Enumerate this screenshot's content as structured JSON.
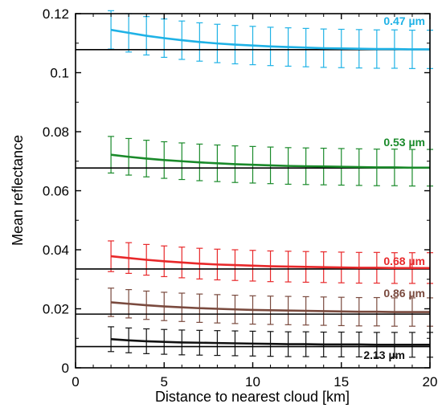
{
  "chart_data": {
    "type": "line",
    "xlabel": "Distance to nearest cloud [km]",
    "ylabel": "Mean reflectance",
    "xlim": [
      0,
      20
    ],
    "ylim": [
      0,
      0.12
    ],
    "x_ticks": [
      0,
      5,
      10,
      15,
      20
    ],
    "x_tick_labels": [
      "0",
      "5",
      "10",
      "15",
      "20"
    ],
    "y_ticks": [
      0,
      0.02,
      0.04,
      0.06,
      0.08,
      0.1,
      0.12
    ],
    "y_tick_labels": [
      "0",
      "0.02",
      "0.04",
      "0.06",
      "0.08",
      "0.1",
      "0.12"
    ],
    "grid": false,
    "legend": "none",
    "x": [
      2,
      3,
      4,
      5,
      6,
      7,
      8,
      9,
      10,
      11,
      12,
      13,
      14,
      15,
      16,
      17,
      18,
      19,
      20
    ],
    "series": [
      {
        "name": "0.47 µm",
        "color": "#1fb2e6",
        "values": [
          0.1145,
          0.1135,
          0.1125,
          0.1117,
          0.111,
          0.1104,
          0.1099,
          0.1095,
          0.1092,
          0.1089,
          0.1087,
          0.1085,
          0.1083,
          0.1082,
          0.1081,
          0.108,
          0.108,
          0.1079,
          0.1079
        ],
        "error": 0.0065,
        "baseline": 0.1078
      },
      {
        "name": "0.53 µm",
        "color": "#1a8a2a",
        "values": [
          0.0722,
          0.0715,
          0.0709,
          0.0704,
          0.07,
          0.0696,
          0.0693,
          0.069,
          0.0688,
          0.0686,
          0.0684,
          0.0683,
          0.0682,
          0.0681,
          0.068,
          0.0679,
          0.0679,
          0.0678,
          0.0678
        ],
        "error": 0.0062,
        "baseline": 0.0677
      },
      {
        "name": "0.68 µm",
        "color": "#e8282a",
        "values": [
          0.0378,
          0.0372,
          0.0366,
          0.0361,
          0.0357,
          0.0353,
          0.035,
          0.0348,
          0.0346,
          0.0344,
          0.0343,
          0.0342,
          0.0341,
          0.034,
          0.0339,
          0.0339,
          0.0338,
          0.0338,
          0.0338
        ],
        "error": 0.0052,
        "baseline": 0.0335
      },
      {
        "name": "0.86 µm",
        "color": "#7a4a3e",
        "values": [
          0.0222,
          0.0217,
          0.0212,
          0.0208,
          0.0205,
          0.0202,
          0.02,
          0.0198,
          0.0196,
          0.0195,
          0.0194,
          0.0193,
          0.0192,
          0.0191,
          0.019,
          0.019,
          0.0189,
          0.0189,
          0.0189
        ],
        "error": 0.0048,
        "baseline": 0.0182
      },
      {
        "name": "2.13 µm",
        "color": "#111111",
        "values": [
          0.0097,
          0.0093,
          0.009,
          0.0088,
          0.0086,
          0.0085,
          0.0084,
          0.0083,
          0.0082,
          0.0081,
          0.008,
          0.008,
          0.0079,
          0.0079,
          0.0079,
          0.0078,
          0.0078,
          0.0078,
          0.0078
        ],
        "error": 0.0042,
        "baseline": 0.0072
      }
    ]
  }
}
